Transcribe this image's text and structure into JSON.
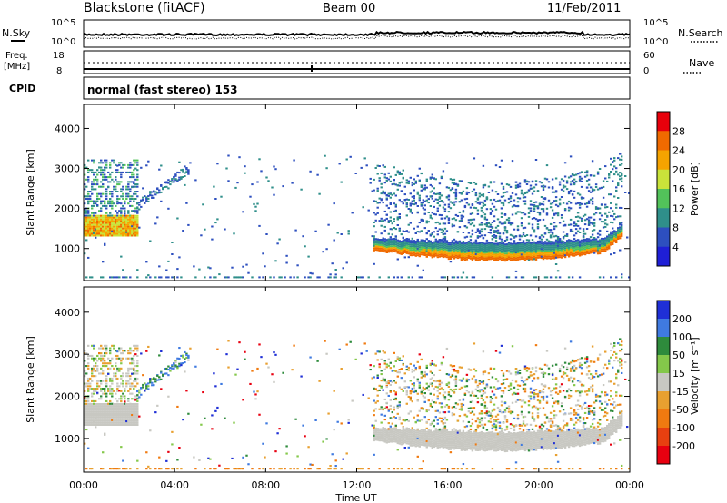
{
  "header": {
    "station": "Blackstone (fitACF)",
    "beam": "Beam 00",
    "date": "11/Feb/2011"
  },
  "top_panel": {
    "left_label": "N.Sky",
    "left_ticks": [
      "10^5",
      "10^0"
    ],
    "right_ticks": [
      "10^5",
      "10^0"
    ],
    "right_label": "N.Search"
  },
  "freq_panel": {
    "left_label_1": "Freq.",
    "left_label_2": "[MHz]",
    "left_ticks": [
      "18",
      "8"
    ],
    "right_ticks": [
      "60",
      "0"
    ],
    "right_label": "Nave"
  },
  "cpid": {
    "label": "CPID",
    "text": "normal (fast stereo) 153"
  },
  "x_axis": {
    "tick_labels": [
      "00:00",
      "04:00",
      "08:00",
      "12:00",
      "16:00",
      "20:00",
      "00:00"
    ],
    "title": "Time UT"
  },
  "chart_data": [
    {
      "type": "heatmap",
      "name": "Power",
      "xlabel": "Time UT",
      "ylabel": "Slant Range [km]",
      "xlim": [
        0,
        24
      ],
      "ylim": [
        200,
        4600
      ],
      "yticks": [
        1000,
        2000,
        3000,
        4000
      ],
      "colorbar": {
        "label": "Power [dB]",
        "ticks": [
          "28",
          "24",
          "20",
          "16",
          "12",
          "8",
          "4"
        ],
        "colors": [
          "#e8000b",
          "#f06a00",
          "#f5a300",
          "#c9e33a",
          "#52c25a",
          "#2f8f8a",
          "#2d4fbf",
          "#1f1fd6"
        ]
      }
    },
    {
      "type": "heatmap",
      "name": "Velocity",
      "xlabel": "Time UT",
      "ylabel": "Slant Range [km]",
      "xlim": [
        0,
        24
      ],
      "ylim": [
        200,
        4600
      ],
      "yticks": [
        1000,
        2000,
        3000,
        4000
      ],
      "colorbar": {
        "label": "Velocity [m s⁻¹]",
        "ticks": [
          "200",
          "100",
          "50",
          "15",
          "-15",
          "-50",
          "-100",
          "-200"
        ],
        "colors": [
          "#1f2fd6",
          "#3f7ae0",
          "#2e8b3c",
          "#84c84a",
          "#c8c8c2",
          "#e8a030",
          "#f07a10",
          "#e84010",
          "#e80010"
        ]
      }
    }
  ]
}
